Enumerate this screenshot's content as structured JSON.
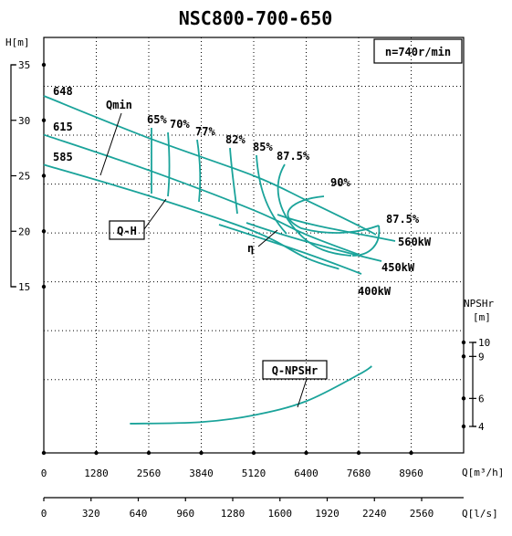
{
  "chart_data": {
    "type": "line",
    "title": "NSC800-700-650",
    "speed_label": "n=740r/min",
    "x_axis": {
      "label": "Q[m³/h]",
      "range": [
        0,
        10240
      ],
      "ticks": [
        "0",
        "1280",
        "2560",
        "3840",
        "5120",
        "6400",
        "7680",
        "8960"
      ]
    },
    "x2_axis": {
      "label": "Q[l/s]",
      "ticks": [
        "0",
        "320",
        "640",
        "960",
        "1280",
        "1600",
        "1920",
        "2240",
        "2560"
      ]
    },
    "y_axis": {
      "label": "H[m]",
      "range": [
        15,
        35
      ],
      "ticks": [
        "35",
        "30",
        "25",
        "20",
        "15"
      ]
    },
    "y2_axis": {
      "label_line1": "NPSHr",
      "label_line2": "[m]",
      "range": [
        4,
        10
      ],
      "ticks": [
        "10",
        "9",
        "6",
        "4"
      ]
    },
    "series": [
      {
        "name": "648",
        "kind": "QH",
        "x": [
          0,
          2560,
          5120,
          6400,
          7680,
          8100
        ],
        "y": [
          32.2,
          28.4,
          25.0,
          22.8,
          20.5,
          19.7
        ]
      },
      {
        "name": "615",
        "kind": "QH",
        "x": [
          0,
          2560,
          5120,
          6400,
          7680
        ],
        "y": [
          28.7,
          25.5,
          21.9,
          19.7,
          17.9
        ]
      },
      {
        "name": "585",
        "kind": "QH",
        "x": [
          0,
          2560,
          5120,
          6400,
          7200
        ],
        "y": [
          26.0,
          23.2,
          20.0,
          17.6,
          16.6
        ]
      },
      {
        "name": "Q-NPSHr",
        "kind": "NPSH",
        "x": [
          2100,
          3800,
          5120,
          6400,
          7680,
          8000
        ],
        "y": [
          4.2,
          4.3,
          4.8,
          5.8,
          7.7,
          8.3
        ]
      }
    ],
    "efficiency_labels": [
      "65%",
      "70%",
      "77%",
      "82%",
      "85%",
      "87.5%",
      "90%",
      "87.5%"
    ],
    "power_labels": [
      "560kW",
      "450kW",
      "400kW"
    ],
    "annotations": [
      "Qmin",
      "Q-H",
      "η",
      "Q-NPSHr"
    ],
    "grid": true
  }
}
